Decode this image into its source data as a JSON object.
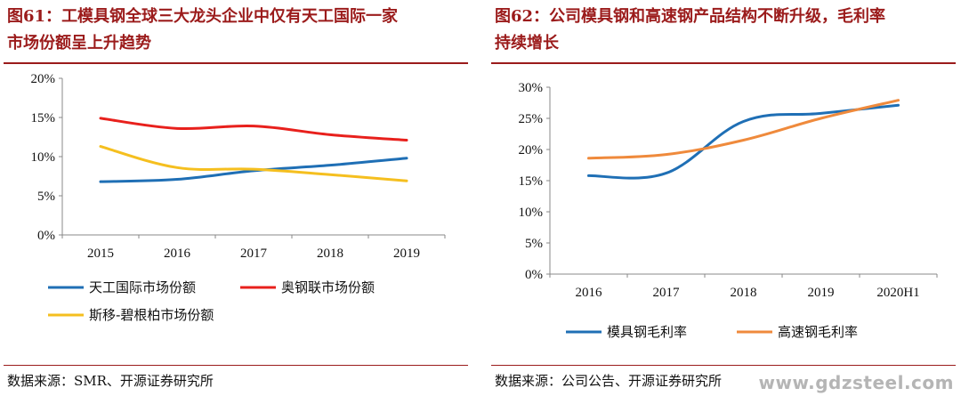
{
  "figures": [
    {
      "number": "图61：",
      "title_line1": "工模具钢全球三大龙头企业中仅有天工国际一家",
      "title_line2": "市场份额呈上升趋势",
      "source": "数据来源：SMR、开源证券研究所"
    },
    {
      "number": "图62：",
      "title_line1": "公司模具钢和高速钢产品结构不断升级，毛利率",
      "title_line2": "持续增长",
      "source": "数据来源：公司公告、开源证券研究所"
    }
  ],
  "watermark": "www.gdzsteel.com",
  "colors": {
    "blue": "#1f6fb5",
    "red": "#e8201c",
    "yellow": "#f5bf1f",
    "orange": "#ef8a3c",
    "title": "#9b1b1b"
  },
  "chart_data": [
    {
      "type": "line",
      "categories": [
        "2015",
        "2016",
        "2017",
        "2018",
        "2019"
      ],
      "ylim": [
        0,
        20
      ],
      "yticks": [
        "0%",
        "5%",
        "10%",
        "15%",
        "20%"
      ],
      "y_unit": "%",
      "grid": false,
      "legend_position": "bottom",
      "series": [
        {
          "name": "天工国际市场份额",
          "values": [
            6.8,
            7.1,
            8.2,
            8.9,
            9.8
          ],
          "color": "#1f6fb5"
        },
        {
          "name": "奥钢联市场份额",
          "values": [
            14.9,
            13.6,
            13.9,
            12.8,
            12.1
          ],
          "color": "#e8201c"
        },
        {
          "name": "斯移-碧根柏市场份额",
          "values": [
            11.3,
            8.6,
            8.4,
            7.7,
            6.9
          ],
          "color": "#f5bf1f"
        }
      ]
    },
    {
      "type": "line",
      "categories": [
        "2016",
        "2017",
        "2018",
        "2019",
        "2020H1"
      ],
      "ylim": [
        0,
        30
      ],
      "yticks": [
        "0%",
        "5%",
        "10%",
        "15%",
        "20%",
        "25%",
        "30%"
      ],
      "y_unit": "%",
      "grid": false,
      "legend_position": "bottom",
      "series": [
        {
          "name": "模具钢毛利率",
          "values": [
            15.8,
            16.2,
            24.5,
            25.8,
            27.1
          ],
          "color": "#1f6fb5"
        },
        {
          "name": "高速钢毛利率",
          "values": [
            18.6,
            19.2,
            21.5,
            25.0,
            27.9
          ],
          "color": "#ef8a3c"
        }
      ]
    }
  ]
}
